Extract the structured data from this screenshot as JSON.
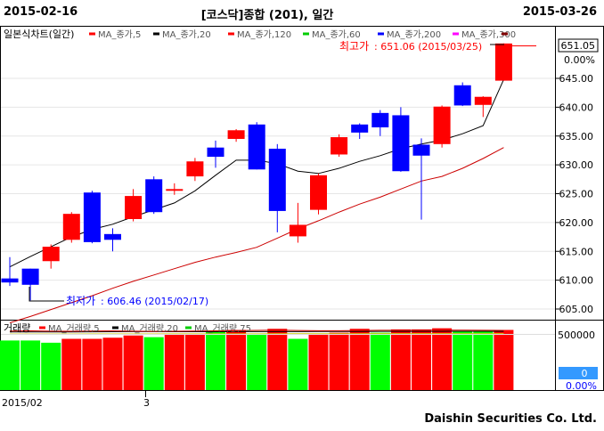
{
  "header": {
    "start_date": "2015-02-16",
    "end_date": "2015-03-26",
    "title": "[코스닥]종합 (201), 일간"
  },
  "legend_price": {
    "chart_label": "일본식차트(일간)",
    "items": [
      {
        "label": "MA_종가,5",
        "color": "#ff0000"
      },
      {
        "label": "MA_종가,20",
        "color": "#000000"
      },
      {
        "label": "MA_종가,120",
        "color": "#ff0000"
      },
      {
        "label": "MA_종가,60",
        "color": "#00cc00"
      },
      {
        "label": "MA_종가,200",
        "color": "#0000ff"
      },
      {
        "label": "MA_종가,300",
        "color": "#ff00ff"
      }
    ],
    "end_marker_color": "#800000"
  },
  "legend_volume": {
    "chart_label": "거래량",
    "items": [
      {
        "label": "MA_거래량,5",
        "color": "#ff0000"
      },
      {
        "label": "MA_거래량,20",
        "color": "#000000"
      },
      {
        "label": "MA_거래량,75",
        "color": "#00cc00"
      }
    ]
  },
  "annotations": {
    "high_label": "최고가",
    "high_value": ": 651.06 (2015/03/25)",
    "low_label": "최저가",
    "low_value": ": 606.46 (2015/02/17)"
  },
  "right_axis": {
    "price_box": "651.05",
    "pct": "0.00%",
    "volume_box": "0",
    "volume_pct": "0.00%",
    "volume_tick": "500000"
  },
  "x_axis": {
    "labels": [
      "2015/02",
      "3"
    ]
  },
  "footer": "Daishin Securities Co. Ltd.",
  "chart_data": {
    "type": "candlestick",
    "y_ticks": [
      605,
      610,
      615,
      620,
      625,
      630,
      635,
      640,
      645
    ],
    "ylim": [
      602.5,
      652
    ],
    "up_color": "#ff0000",
    "down_color": "#0000ff",
    "candles": [
      {
        "o": 610.3,
        "h": 614.0,
        "l": 609.0,
        "c": 609.6
      },
      {
        "o": 612.0,
        "h": 612.0,
        "l": 606.5,
        "c": 609.2
      },
      {
        "o": 613.3,
        "h": 616.2,
        "l": 612.0,
        "c": 615.8
      },
      {
        "o": 617.0,
        "h": 621.8,
        "l": 616.5,
        "c": 621.5
      },
      {
        "o": 625.2,
        "h": 625.5,
        "l": 616.4,
        "c": 616.6
      },
      {
        "o": 618.0,
        "h": 619.0,
        "l": 615.0,
        "c": 617.0
      },
      {
        "o": 620.6,
        "h": 625.8,
        "l": 620.2,
        "c": 624.6
      },
      {
        "o": 627.5,
        "h": 628.0,
        "l": 621.5,
        "c": 621.8
      },
      {
        "o": 625.5,
        "h": 626.8,
        "l": 624.8,
        "c": 625.8
      },
      {
        "o": 628.0,
        "h": 631.2,
        "l": 627.2,
        "c": 630.6
      },
      {
        "o": 633.0,
        "h": 634.2,
        "l": 629.5,
        "c": 631.4
      },
      {
        "o": 634.5,
        "h": 636.2,
        "l": 634.0,
        "c": 636.0
      },
      {
        "o": 637.0,
        "h": 637.4,
        "l": 629.2,
        "c": 629.2
      },
      {
        "o": 632.8,
        "h": 633.6,
        "l": 618.3,
        "c": 622.0
      },
      {
        "o": 617.6,
        "h": 623.4,
        "l": 616.5,
        "c": 619.6
      },
      {
        "o": 622.2,
        "h": 628.5,
        "l": 621.4,
        "c": 628.2
      },
      {
        "o": 631.8,
        "h": 635.3,
        "l": 631.4,
        "c": 634.8
      },
      {
        "o": 637.0,
        "h": 637.2,
        "l": 634.5,
        "c": 635.6
      },
      {
        "o": 639.0,
        "h": 639.5,
        "l": 635.0,
        "c": 636.5
      },
      {
        "o": 638.6,
        "h": 640.0,
        "l": 628.8,
        "c": 628.9
      },
      {
        "o": 633.5,
        "h": 634.6,
        "l": 620.5,
        "c": 631.6
      },
      {
        "o": 633.6,
        "h": 640.3,
        "l": 633.0,
        "c": 640.1
      },
      {
        "o": 643.8,
        "h": 644.3,
        "l": 640.2,
        "c": 640.3
      },
      {
        "o": 640.4,
        "h": 641.9,
        "l": 638.3,
        "c": 641.8
      },
      {
        "o": 644.6,
        "h": 651.06,
        "l": 644.6,
        "c": 651.05
      }
    ],
    "ma20": [
      612.3,
      614.1,
      615.8,
      617.5,
      618.8,
      619.7,
      621.0,
      622.2,
      623.4,
      625.5,
      628.2,
      630.8,
      630.8,
      630.2,
      628.9,
      628.5,
      629.4,
      630.6,
      631.6,
      632.8,
      633.6,
      634.3,
      635.4,
      636.8,
      644.8
    ],
    "ma120": [
      602.6,
      603.7,
      604.9,
      606.1,
      607.3,
      608.6,
      609.8,
      610.9,
      612.0,
      613.1,
      614.0,
      614.8,
      615.7,
      617.3,
      618.9,
      620.3,
      621.8,
      623.2,
      624.4,
      625.8,
      627.2,
      628.0,
      629.4,
      631.1,
      633.0
    ],
    "volume": {
      "tick": 500000,
      "ymax": 560000,
      "up_color": "#ff0000",
      "down_color": "#00ff00",
      "bars": [
        {
          "v": 445000,
          "up": false
        },
        {
          "v": 445000,
          "up": false
        },
        {
          "v": 425000,
          "up": false
        },
        {
          "v": 460000,
          "up": true
        },
        {
          "v": 460000,
          "up": true
        },
        {
          "v": 470000,
          "up": true
        },
        {
          "v": 490000,
          "up": true
        },
        {
          "v": 475000,
          "up": false
        },
        {
          "v": 500000,
          "up": true
        },
        {
          "v": 500000,
          "up": true
        },
        {
          "v": 520000,
          "up": false
        },
        {
          "v": 540000,
          "up": true
        },
        {
          "v": 500000,
          "up": false
        },
        {
          "v": 550000,
          "up": true
        },
        {
          "v": 460000,
          "up": false
        },
        {
          "v": 500000,
          "up": true
        },
        {
          "v": 515000,
          "up": true
        },
        {
          "v": 550000,
          "up": true
        },
        {
          "v": 515000,
          "up": false
        },
        {
          "v": 545000,
          "up": true
        },
        {
          "v": 545000,
          "up": true
        },
        {
          "v": 555000,
          "up": true
        },
        {
          "v": 525000,
          "up": false
        },
        {
          "v": 525000,
          "up": false
        },
        {
          "v": 540000,
          "up": true
        }
      ],
      "ma_red": [
        530000,
        532000,
        529000,
        528000,
        530000,
        531000,
        529000,
        527000,
        528000,
        530000,
        532000,
        534000,
        536000,
        538000,
        535000,
        533000,
        533000,
        535000,
        537000,
        537000,
        538000,
        539000,
        538000,
        537000,
        536000
      ],
      "ma_black": [
        522000,
        522000,
        522000,
        522000,
        523000,
        524000,
        525000,
        525000,
        524000,
        524000,
        524000,
        525000,
        525000,
        525000,
        525000,
        526000,
        526000,
        526000,
        527000,
        527000,
        527000,
        527000,
        528000,
        528000,
        527000
      ],
      "ma_green": [
        503000,
        503000,
        503000,
        503000,
        504000,
        504000,
        504000,
        504000,
        505000,
        505000,
        505000,
        505000,
        505000,
        506000,
        506000,
        506000,
        506000,
        506000,
        507000,
        507000,
        507000,
        507000,
        507000,
        507000,
        507000
      ]
    }
  }
}
